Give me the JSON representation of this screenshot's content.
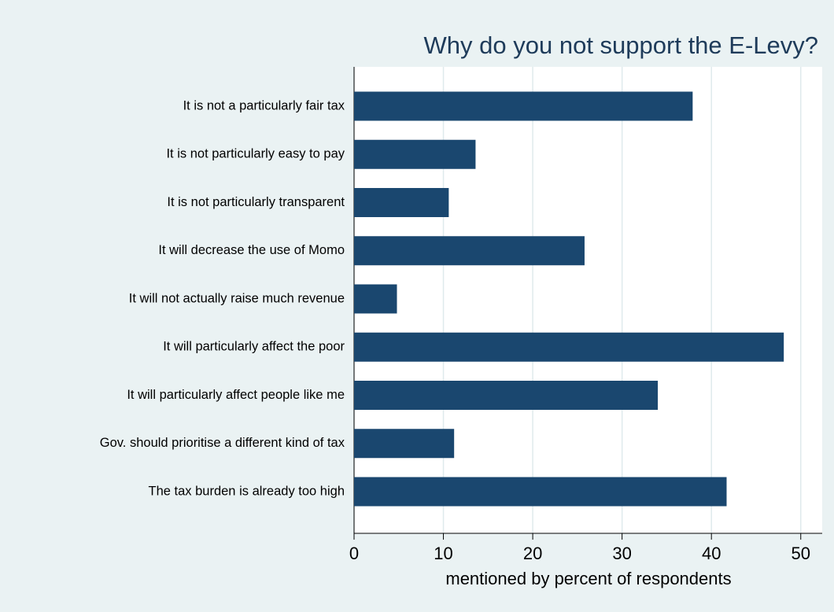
{
  "chart_data": {
    "type": "hbar",
    "title": "Why do you not support the E-Levy?",
    "x_label": "mentioned by percent of respondents",
    "categories": [
      "It is not a particularly fair tax",
      "It is not particularly easy to pay",
      "It is not particularly transparent",
      "It will decrease the use of Momo",
      "It will not actually raise much revenue",
      "It will particularly affect the poor",
      "It will particularly affect people like me",
      "Gov. should prioritise a different kind of tax",
      "The tax burden is already too high"
    ],
    "values": [
      37.9,
      13.6,
      10.6,
      25.8,
      4.8,
      48.1,
      34,
      11.2,
      41.7
    ],
    "color": "#1a476f",
    "xlim": [
      0,
      52.4
    ],
    "xticks": [
      0,
      10,
      20,
      30,
      40,
      50
    ],
    "grid": true
  }
}
